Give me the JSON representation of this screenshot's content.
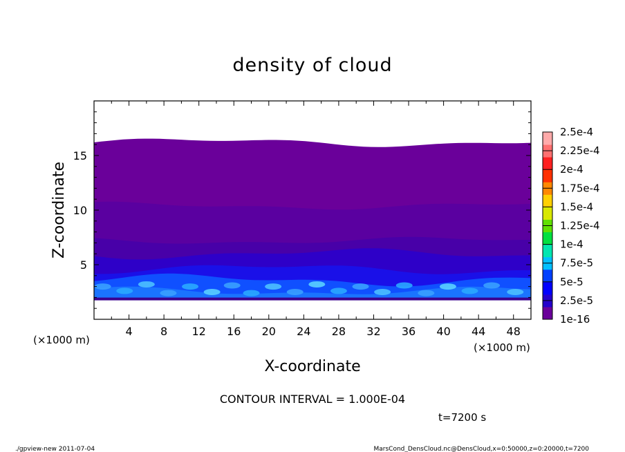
{
  "chart_data": {
    "type": "heatmap",
    "title": "density of cloud",
    "xlabel": "X-coordinate",
    "ylabel": "Z-coordinate",
    "x_unit": "(×1000 m)",
    "y_unit": "(×1000 m)",
    "xlim": [
      0,
      50
    ],
    "ylim": [
      0,
      20
    ],
    "x_ticks": [
      4,
      8,
      12,
      16,
      20,
      24,
      28,
      32,
      36,
      40,
      44,
      48
    ],
    "y_ticks": [
      5,
      10,
      15
    ],
    "cloud_top_z": 16.2,
    "cloud_base_z": 1.8,
    "layers": [
      {
        "z_bottom": 10.4,
        "z_top": 16.2,
        "level": "1e-16",
        "color": "#6a009a",
        "wave": 0.3
      },
      {
        "z_bottom": 7.2,
        "z_top": 10.4,
        "level": "1e-16",
        "color": "#5a00a0",
        "wave": 0.25
      },
      {
        "z_bottom": 6.0,
        "z_top": 7.2,
        "level": "1e-16",
        "color": "#4800a8",
        "wave": 0.25
      },
      {
        "z_bottom": 4.6,
        "z_top": 6.0,
        "level": "2.5e-5",
        "color": "#2e00c8",
        "wave": 0.35
      },
      {
        "z_bottom": 3.6,
        "z_top": 4.6,
        "level": "2.5e-5",
        "color": "#1a10e8",
        "wave": 0.35
      },
      {
        "z_bottom": 2.6,
        "z_top": 3.6,
        "level": "5e-5",
        "color": "#1050ff",
        "wave": 0.4
      },
      {
        "z_bottom": 1.8,
        "z_top": 2.6,
        "level": "5e-5",
        "color": "#1a74ff",
        "wave": 0.3
      }
    ],
    "colorbar": {
      "levels": [
        "1e-16",
        "2.5e-5",
        "5e-5",
        "7.5e-5",
        "1e-4",
        "1.25e-4",
        "1.5e-4",
        "1.75e-4",
        "2e-4",
        "2.25e-4",
        "2.5e-4"
      ],
      "colors": [
        "#6a009a",
        "#2400cc",
        "#0000ff",
        "#0040ff",
        "#00bfff",
        "#00e6b0",
        "#00e040",
        "#60e000",
        "#d8e800",
        "#ffd000",
        "#ff8800",
        "#ff3000",
        "#ff2020",
        "#ff7070",
        "#ffaaaa"
      ]
    },
    "contour_interval": "CONTOUR INTERVAL = 1.000E-04",
    "time": "t=7200 s"
  },
  "footer": {
    "left": "./gpview-new 2011-07-04",
    "right": "MarsCond_DensCloud.nc@DensCloud,x=0:50000,z=0:20000,t=7200"
  }
}
